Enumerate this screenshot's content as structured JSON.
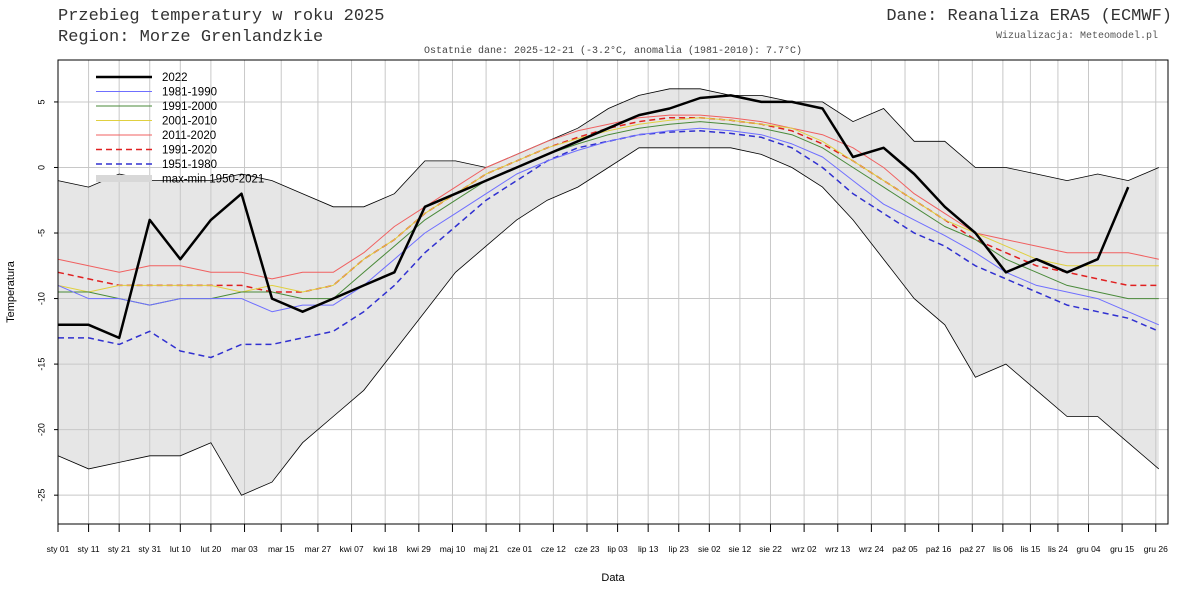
{
  "chart_data": {
    "type": "line",
    "title": "Przebieg temperatury w roku 2025",
    "subtitle": "Region: Morze Grenlandzkie",
    "source": "Dane: Reanaliza ERA5 (ECMWF)",
    "credit": "Wizualizacja: Meteomodel.pl",
    "annotation": "Ostatnie dane: 2025-12-21 (-3.2°C, anomalia (1981-2010): 7.7°C)",
    "y_label": "Temperatura",
    "x_label": "Data",
    "grid": true,
    "legend": "top-left",
    "xlim": [
      1,
      364
    ],
    "ylim": [
      -27.2,
      8.2
    ],
    "yticks": [
      -25,
      -20,
      -15,
      -10,
      -5,
      0,
      5
    ],
    "xticks": [
      {
        "value": 1,
        "label": "sty 01"
      },
      {
        "value": 11,
        "label": "sty 11"
      },
      {
        "value": 21,
        "label": "sty 21"
      },
      {
        "value": 31,
        "label": "sty 31"
      },
      {
        "value": 41,
        "label": "lut 10"
      },
      {
        "value": 51,
        "label": "lut 20"
      },
      {
        "value": 62,
        "label": "mar 03"
      },
      {
        "value": 74,
        "label": "mar 15"
      },
      {
        "value": 86,
        "label": "mar 27"
      },
      {
        "value": 97,
        "label": "kwi 07"
      },
      {
        "value": 108,
        "label": "kwi 18"
      },
      {
        "value": 119,
        "label": "kwi 29"
      },
      {
        "value": 130,
        "label": "maj 10"
      },
      {
        "value": 141,
        "label": "maj 21"
      },
      {
        "value": 152,
        "label": "cze 01"
      },
      {
        "value": 163,
        "label": "cze 12"
      },
      {
        "value": 174,
        "label": "cze 23"
      },
      {
        "value": 184,
        "label": "lip 03"
      },
      {
        "value": 194,
        "label": "lip 13"
      },
      {
        "value": 204,
        "label": "lip 23"
      },
      {
        "value": 214,
        "label": "sie 02"
      },
      {
        "value": 224,
        "label": "sie 12"
      },
      {
        "value": 234,
        "label": "sie 22"
      },
      {
        "value": 245,
        "label": "wrz 02"
      },
      {
        "value": 256,
        "label": "wrz 13"
      },
      {
        "value": 267,
        "label": "wrz 24"
      },
      {
        "value": 278,
        "label": "paź 05"
      },
      {
        "value": 289,
        "label": "paź 16"
      },
      {
        "value": 300,
        "label": "paź 27"
      },
      {
        "value": 310,
        "label": "lis 06"
      },
      {
        "value": 319,
        "label": "lis 15"
      },
      {
        "value": 328,
        "label": "lis 24"
      },
      {
        "value": 338,
        "label": "gru 04"
      },
      {
        "value": 349,
        "label": "gru 15"
      },
      {
        "value": 360,
        "label": "gru 26"
      }
    ],
    "x": [
      1,
      11,
      21,
      31,
      41,
      51,
      61,
      71,
      81,
      91,
      101,
      111,
      121,
      131,
      141,
      151,
      161,
      171,
      181,
      191,
      201,
      211,
      221,
      231,
      241,
      251,
      261,
      271,
      281,
      291,
      301,
      311,
      321,
      331,
      341,
      351,
      361
    ],
    "band": {
      "name": "max-min 1950-2021",
      "color": "#e6e6e6",
      "max": [
        -1,
        -1.5,
        -0.5,
        -1,
        -1,
        -1,
        -0.5,
        -1,
        -2,
        -3,
        -3,
        -2,
        0.5,
        0.5,
        0,
        1,
        2,
        3,
        4.5,
        5.5,
        6,
        6,
        5.5,
        5.5,
        5,
        5,
        3.5,
        4.5,
        2,
        2,
        0,
        0,
        -0.5,
        -1,
        -0.5,
        -1,
        0
      ],
      "min": [
        -22,
        -23,
        -22.5,
        -22,
        -22,
        -21,
        -25,
        -24,
        -21,
        -19,
        -17,
        -14,
        -11,
        -8,
        -6,
        -4,
        -2.5,
        -1.5,
        0,
        1.5,
        1.5,
        1.5,
        1.5,
        1,
        0,
        -1.5,
        -4,
        -7,
        -10,
        -12,
        -16,
        -15,
        -17,
        -19,
        -19,
        -21,
        -23
      ]
    },
    "series": [
      {
        "name": "2022",
        "color": "#000000",
        "width": 2.5,
        "dash": false,
        "values": [
          -12,
          -12,
          -13,
          -4,
          -7,
          -4,
          -2,
          -10,
          -11,
          -10,
          -9,
          -8,
          -3,
          -2,
          -1,
          0,
          1,
          2,
          3,
          4,
          4.5,
          5.3,
          5.5,
          5,
          5,
          4.5,
          0.8,
          1.5,
          -0.5,
          -3,
          -5,
          -8,
          -7,
          -8,
          -7,
          -1.5,
          null
        ]
      },
      {
        "name": "1981-1990",
        "color": "#6f6fff",
        "width": 1,
        "dash": false,
        "values": [
          -9,
          -10,
          -10,
          -10.5,
          -10,
          -10,
          -10,
          -11,
          -10.5,
          -10.5,
          -9,
          -7,
          -5,
          -3.5,
          -2,
          -0.5,
          0.5,
          1.3,
          2,
          2.5,
          2.8,
          3,
          2.8,
          2.5,
          1.8,
          0.8,
          -1,
          -2.8,
          -4,
          -5.2,
          -6.5,
          -8,
          -9,
          -9.5,
          -10,
          -11,
          -12
        ]
      },
      {
        "name": "1991-2000",
        "color": "#4a8a3a",
        "width": 1,
        "dash": false,
        "values": [
          -9.5,
          -9.5,
          -10,
          -10.5,
          -10,
          -10,
          -9.5,
          -9.5,
          -10,
          -10,
          -8,
          -6,
          -4,
          -2.5,
          -1,
          0,
          1,
          1.8,
          2.5,
          3,
          3.3,
          3.5,
          3.3,
          3,
          2.5,
          1.5,
          0,
          -1.5,
          -3,
          -4.5,
          -5.5,
          -7,
          -8,
          -9,
          -9.5,
          -10,
          -10
        ]
      },
      {
        "name": "2001-2010",
        "color": "#e0d040",
        "width": 1,
        "dash": false,
        "values": [
          -9,
          -9.5,
          -9,
          -9,
          -9,
          -9,
          -9.5,
          -9,
          -9.5,
          -9,
          -7,
          -5.5,
          -3.5,
          -2,
          -0.5,
          0.5,
          1.5,
          2.2,
          2.8,
          3.3,
          3.6,
          3.8,
          3.6,
          3.3,
          3,
          2,
          0.5,
          -1,
          -2.5,
          -4,
          -5,
          -6,
          -7,
          -7.5,
          -7.5,
          -7.5,
          -7.5
        ]
      },
      {
        "name": "2011-2020",
        "color": "#f06060",
        "width": 1,
        "dash": false,
        "values": [
          -7,
          -7.5,
          -8,
          -7.5,
          -7.5,
          -8,
          -8,
          -8.5,
          -8,
          -8,
          -6.5,
          -4.5,
          -3,
          -1.5,
          0,
          1,
          2,
          2.8,
          3.3,
          3.8,
          4,
          4,
          3.8,
          3.5,
          3,
          2.5,
          1.5,
          0,
          -2,
          -3.5,
          -5,
          -5.5,
          -6,
          -6.5,
          -6.5,
          -6.5,
          -7
        ]
      },
      {
        "name": "1991-2020",
        "color": "#e02020",
        "width": 1.5,
        "dash": true,
        "values": [
          -8,
          -8.5,
          -9,
          -9,
          -9,
          -9,
          -9,
          -9.5,
          -9.5,
          -9,
          -7,
          -5.5,
          -3.5,
          -2,
          -0.5,
          0.5,
          1.5,
          2.3,
          3,
          3.5,
          3.8,
          3.8,
          3.6,
          3.3,
          2.8,
          1.8,
          0.5,
          -1,
          -2.5,
          -4,
          -5.5,
          -6.5,
          -7.5,
          -8,
          -8.5,
          -9,
          -9
        ]
      },
      {
        "name": "1951-1980",
        "color": "#3030d0",
        "width": 1.5,
        "dash": true,
        "values": [
          -13,
          -13,
          -13.5,
          -12.5,
          -14,
          -14.5,
          -13.5,
          -13.5,
          -13,
          -12.5,
          -11,
          -9,
          -6.5,
          -4.5,
          -2.5,
          -1,
          0.5,
          1.5,
          2,
          2.5,
          2.7,
          2.8,
          2.6,
          2.3,
          1.5,
          0,
          -2,
          -3.5,
          -5,
          -6,
          -7.5,
          -8.5,
          -9.5,
          -10.5,
          -11,
          -11.5,
          -12.5
        ]
      }
    ]
  }
}
